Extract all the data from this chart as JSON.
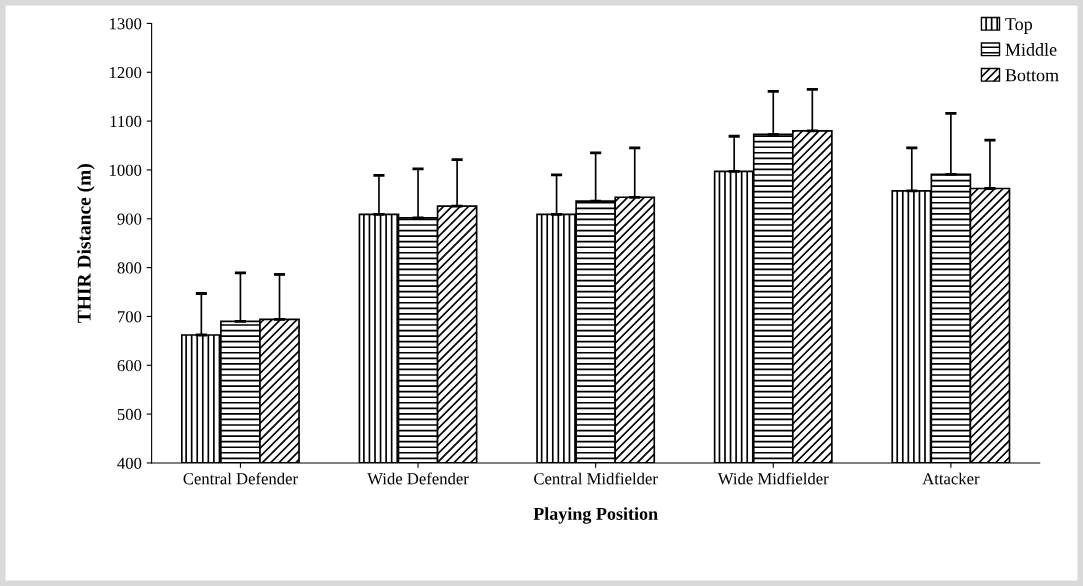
{
  "chart_data": {
    "type": "bar",
    "xlabel": "Playing Position",
    "ylabel": "THIR Distance (m)",
    "categories": [
      "Central Defender",
      "Wide Defender",
      "Central Midfielder",
      "Wide Midfielder",
      "Attacker"
    ],
    "series": [
      {
        "name": "Top",
        "color": "#000000",
        "values": [
          662,
          909,
          909,
          997,
          957
        ],
        "errors": [
          [
            662,
            747
          ],
          [
            909,
            989
          ],
          [
            909,
            990
          ],
          [
            997,
            1069
          ],
          [
            957,
            1045
          ]
        ]
      },
      {
        "name": "Middle",
        "color": "#000000",
        "values": [
          690,
          902,
          936,
          1073,
          991
        ],
        "errors": [
          [
            690,
            789
          ],
          [
            902,
            1002
          ],
          [
            936,
            1035
          ],
          [
            1073,
            1161
          ],
          [
            991,
            1116
          ]
        ]
      },
      {
        "name": "Bottom",
        "color": "#000000",
        "values": [
          694,
          926,
          944,
          1080,
          962
        ],
        "errors": [
          [
            694,
            786
          ],
          [
            926,
            1021
          ],
          [
            944,
            1045
          ],
          [
            1080,
            1165
          ],
          [
            962,
            1061
          ]
        ]
      }
    ],
    "ylim": [
      400,
      1300
    ],
    "yticks": [
      400,
      500,
      600,
      700,
      800,
      900,
      1000,
      1100,
      1200,
      1300
    ],
    "grid": false,
    "legend": "top right"
  }
}
